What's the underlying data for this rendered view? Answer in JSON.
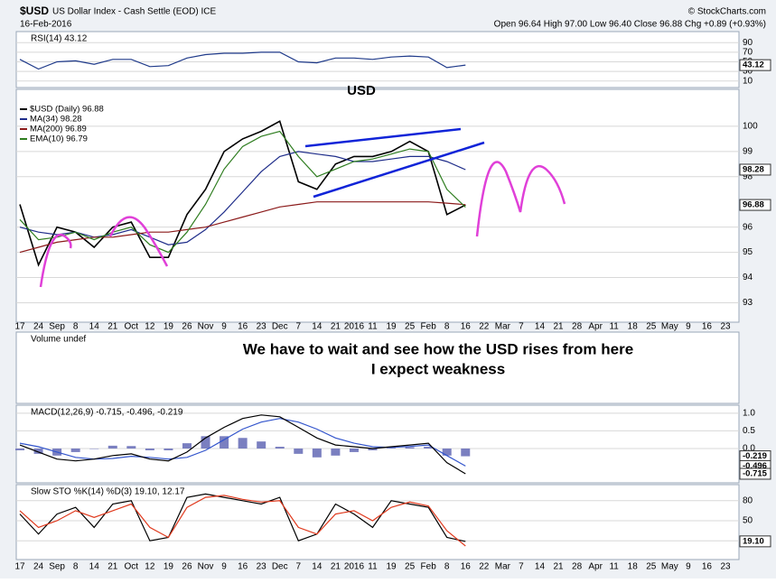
{
  "header": {
    "symbol": "$USD",
    "name": "US Dollar Index - Cash Settle (EOD) ICE",
    "date": "16-Feb-2016",
    "copyright": "© StockCharts.com",
    "quote": "Open 96.64  High 97.00  Low 96.40  Close 96.88  Chg +0.89 (+0.93%)"
  },
  "chart_data": [
    {
      "type": "line",
      "title": "RSI(14) 43.12",
      "ylim": [
        0,
        100
      ],
      "yticks": [
        10,
        30,
        50,
        70,
        90
      ],
      "grid": true,
      "axis_tags": [
        {
          "value": 43.12,
          "label": "43.12"
        }
      ],
      "series": [
        {
          "color": "#1f3a8a",
          "values": [
            55,
            35,
            50,
            52,
            45,
            55,
            55,
            40,
            42,
            58,
            65,
            68,
            68,
            70,
            70,
            50,
            48,
            58,
            58,
            55,
            60,
            62,
            60,
            38,
            43.12,
            null,
            null,
            null,
            null,
            null,
            null,
            null,
            null,
            null,
            null,
            null,
            null,
            null,
            null
          ]
        }
      ]
    },
    {
      "type": "line",
      "title": "USD",
      "ylim": [
        92.3,
        101
      ],
      "yticks": [
        93,
        94,
        95,
        96,
        98,
        99,
        100
      ],
      "grid": true,
      "axis_tags": [
        {
          "value": 98.28,
          "label": "98.28"
        },
        {
          "value": 96.88,
          "label": "96.88"
        }
      ],
      "categories": [
        "17",
        "24",
        "Sep",
        "8",
        "14",
        "21",
        "Oct",
        "12",
        "19",
        "26",
        "Nov",
        "9",
        "16",
        "23",
        "Dec",
        "7",
        "14",
        "21",
        "2016",
        "11",
        "19",
        "25",
        "Feb",
        "8",
        "16",
        "22",
        "Mar",
        "7",
        "14",
        "21",
        "28",
        "Apr",
        "11",
        "18",
        "25",
        "May",
        "9",
        "16",
        "23"
      ],
      "series": [
        {
          "name": "$USD (Daily) 96.88",
          "color": "#000000",
          "values": [
            96.9,
            94.5,
            96.0,
            95.8,
            95.2,
            96.0,
            96.2,
            94.8,
            94.8,
            96.5,
            97.5,
            99.0,
            99.5,
            99.8,
            100.2,
            97.8,
            97.5,
            98.5,
            98.8,
            98.8,
            99.0,
            99.4,
            99.0,
            96.5,
            96.88,
            null,
            null,
            null,
            null,
            null,
            null,
            null,
            null,
            null,
            null,
            null,
            null,
            null,
            null
          ]
        },
        {
          "name": "MA(34) 98.28",
          "color": "#1f2d8a",
          "values": [
            96.0,
            95.8,
            95.7,
            95.8,
            95.6,
            95.7,
            95.9,
            95.6,
            95.3,
            95.4,
            95.9,
            96.6,
            97.4,
            98.2,
            98.8,
            99.0,
            98.9,
            98.8,
            98.6,
            98.6,
            98.7,
            98.8,
            98.8,
            98.6,
            98.28,
            null,
            null,
            null,
            null,
            null,
            null,
            null,
            null,
            null,
            null,
            null,
            null,
            null,
            null
          ]
        },
        {
          "name": "MA(200) 96.89",
          "color": "#8b1a1a",
          "values": [
            95.0,
            95.2,
            95.4,
            95.5,
            95.6,
            95.6,
            95.7,
            95.8,
            95.8,
            95.9,
            96.0,
            96.2,
            96.4,
            96.6,
            96.8,
            96.9,
            97.0,
            97.0,
            97.0,
            97.0,
            97.0,
            97.0,
            97.0,
            96.95,
            96.89,
            null,
            null,
            null,
            null,
            null,
            null,
            null,
            null,
            null,
            null,
            null,
            null,
            null,
            null
          ]
        },
        {
          "name": "EMA(10) 96.79",
          "color": "#2e7d1f",
          "values": [
            96.3,
            95.5,
            95.6,
            95.8,
            95.5,
            95.8,
            96.0,
            95.3,
            95.0,
            95.8,
            96.9,
            98.3,
            99.2,
            99.6,
            99.8,
            98.8,
            98.0,
            98.3,
            98.6,
            98.7,
            98.9,
            99.1,
            99.0,
            97.5,
            96.79,
            null,
            null,
            null,
            null,
            null,
            null,
            null,
            null,
            null,
            null,
            null,
            null,
            null,
            null
          ]
        }
      ]
    },
    {
      "type": "annotation",
      "title": "Volume undef",
      "annotations": [
        {
          "text": "We have to wait and see how the USD rises from here",
          "color": "#e0202a"
        },
        {
          "text": "I expect weakness",
          "color": "#1f3fb0"
        }
      ]
    },
    {
      "type": "line",
      "title": "MACD(12,26,9) -0.715, -0.496, -0.219",
      "ylim": [
        -0.92,
        1.15
      ],
      "yticks": [
        0.5,
        {
          "value": 1.0,
          "label": "1.0"
        },
        {
          "value": 0.0,
          "label": "0.0"
        }
      ],
      "grid": true,
      "axis_tags": [
        {
          "value": -0.219,
          "label": "-0.219"
        },
        {
          "value": -0.496,
          "label": "-0.496"
        },
        {
          "value": -0.715,
          "label": "-0.715"
        }
      ],
      "series": [
        {
          "type": "bar",
          "color": "#7a7fc0",
          "values": [
            -0.05,
            -0.15,
            -0.2,
            -0.1,
            0,
            0.08,
            0.07,
            -0.05,
            -0.05,
            0.15,
            0.35,
            0.35,
            0.3,
            0.2,
            0.05,
            -0.15,
            -0.25,
            -0.2,
            -0.1,
            -0.05,
            0.02,
            0.04,
            0.05,
            -0.2,
            -0.219,
            null,
            null,
            null,
            null,
            null,
            null,
            null,
            null,
            null,
            null,
            null,
            null,
            null,
            null
          ]
        },
        {
          "color": "#3355cc",
          "values": [
            0.15,
            0.05,
            -0.1,
            -0.25,
            -0.3,
            -0.28,
            -0.22,
            -0.25,
            -0.3,
            -0.25,
            -0.05,
            0.25,
            0.55,
            0.75,
            0.85,
            0.75,
            0.55,
            0.3,
            0.15,
            0.05,
            0.03,
            0.06,
            0.1,
            -0.2,
            -0.496,
            null,
            null,
            null,
            null,
            null,
            null,
            null,
            null,
            null,
            null,
            null,
            null,
            null,
            null
          ]
        },
        {
          "color": "#000000",
          "values": [
            0.1,
            -0.1,
            -0.3,
            -0.35,
            -0.3,
            -0.2,
            -0.15,
            -0.3,
            -0.35,
            -0.1,
            0.3,
            0.6,
            0.85,
            0.95,
            0.9,
            0.6,
            0.3,
            0.1,
            0.05,
            0.0,
            0.05,
            0.1,
            0.15,
            -0.4,
            -0.715,
            null,
            null,
            null,
            null,
            null,
            null,
            null,
            null,
            null,
            null,
            null,
            null,
            null,
            null
          ]
        }
      ]
    },
    {
      "type": "line",
      "title": "Slow STO %K(14) %D(3) 19.10, 12.17",
      "ylim": [
        0,
        100
      ],
      "yticks": [
        20,
        50,
        80
      ],
      "grid": true,
      "axis_tags": [
        {
          "value": 19.1,
          "label": "19.10"
        }
      ],
      "categories": [
        "17",
        "24",
        "Sep",
        "8",
        "14",
        "21",
        "Oct",
        "12",
        "19",
        "26",
        "Nov",
        "9",
        "16",
        "23",
        "Dec",
        "7",
        "14",
        "21",
        "2016",
        "11",
        "19",
        "25",
        "Feb",
        "8",
        "16",
        "22",
        "Mar",
        "7",
        "14",
        "21",
        "28",
        "Apr",
        "11",
        "18",
        "25",
        "May",
        "9",
        "16",
        "23"
      ],
      "series": [
        {
          "color": "#000000",
          "values": [
            60,
            30,
            60,
            70,
            40,
            75,
            80,
            20,
            25,
            85,
            90,
            85,
            80,
            75,
            85,
            20,
            30,
            75,
            60,
            40,
            80,
            75,
            70,
            25,
            19.1,
            null,
            null,
            null,
            null,
            null,
            null,
            null,
            null,
            null,
            null,
            null,
            null,
            null,
            null
          ]
        },
        {
          "color": "#e03a1e",
          "values": [
            65,
            40,
            50,
            65,
            55,
            65,
            75,
            40,
            25,
            70,
            85,
            88,
            82,
            78,
            80,
            40,
            30,
            60,
            65,
            50,
            70,
            78,
            72,
            35,
            12.17,
            null,
            null,
            null,
            null,
            null,
            null,
            null,
            null,
            null,
            null,
            null,
            null,
            null,
            null
          ]
        }
      ]
    }
  ]
}
